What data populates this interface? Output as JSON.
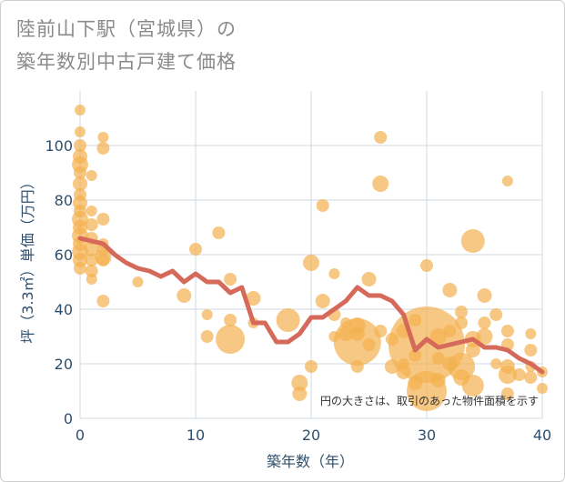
{
  "title": {
    "line1": "陸前山下駅（宮城県）の",
    "line2": "築年数別中古戸建て価格"
  },
  "note": "円の大きさは、取引のあった物件面積を示す",
  "colors": {
    "bubble": "#f4b04f",
    "line": "#d5695a",
    "grid": "#cfd8e3",
    "axis_text": "#2f4f6f",
    "title": "#8a8a8a"
  },
  "chart_data": {
    "type": "scatter",
    "xlabel": "築年数（年）",
    "ylabel": "坪（3.3㎡）単価（万円）",
    "xlim": [
      0,
      40
    ],
    "ylim": [
      0,
      120
    ],
    "xticks": [
      0,
      10,
      20,
      30,
      40
    ],
    "yticks": [
      0,
      20,
      40,
      60,
      80,
      100
    ],
    "grid": true,
    "series": [
      {
        "type": "bubble",
        "points": [
          {
            "x": 0,
            "y": 113,
            "s": 6
          },
          {
            "x": 0,
            "y": 105,
            "s": 6
          },
          {
            "x": 0,
            "y": 100,
            "s": 7
          },
          {
            "x": 0,
            "y": 96,
            "s": 8
          },
          {
            "x": 0,
            "y": 93,
            "s": 9
          },
          {
            "x": 0,
            "y": 90,
            "s": 7
          },
          {
            "x": 0,
            "y": 86,
            "s": 8
          },
          {
            "x": 0,
            "y": 82,
            "s": 7
          },
          {
            "x": 0,
            "y": 79,
            "s": 8
          },
          {
            "x": 0,
            "y": 76,
            "s": 7
          },
          {
            "x": 0,
            "y": 73,
            "s": 9
          },
          {
            "x": 0,
            "y": 70,
            "s": 8
          },
          {
            "x": 0,
            "y": 67,
            "s": 9
          },
          {
            "x": 0,
            "y": 64,
            "s": 8
          },
          {
            "x": 0,
            "y": 61,
            "s": 9
          },
          {
            "x": 0,
            "y": 58,
            "s": 8
          },
          {
            "x": 0,
            "y": 55,
            "s": 7
          },
          {
            "x": 1,
            "y": 89,
            "s": 6
          },
          {
            "x": 1,
            "y": 76,
            "s": 6
          },
          {
            "x": 1,
            "y": 71,
            "s": 7
          },
          {
            "x": 1,
            "y": 66,
            "s": 7
          },
          {
            "x": 1,
            "y": 62,
            "s": 8
          },
          {
            "x": 1,
            "y": 58,
            "s": 7
          },
          {
            "x": 1,
            "y": 54,
            "s": 7
          },
          {
            "x": 1,
            "y": 51,
            "s": 6
          },
          {
            "x": 2,
            "y": 103,
            "s": 6
          },
          {
            "x": 2,
            "y": 99,
            "s": 7
          },
          {
            "x": 2,
            "y": 73,
            "s": 7
          },
          {
            "x": 2,
            "y": 64,
            "s": 6
          },
          {
            "x": 2,
            "y": 62,
            "s": 7
          },
          {
            "x": 2,
            "y": 59,
            "s": 9
          },
          {
            "x": 2,
            "y": 58,
            "s": 7
          },
          {
            "x": 2,
            "y": 43,
            "s": 7
          },
          {
            "x": 5,
            "y": 50,
            "s": 6
          },
          {
            "x": 9,
            "y": 45,
            "s": 8
          },
          {
            "x": 10,
            "y": 62,
            "s": 7
          },
          {
            "x": 11,
            "y": 38,
            "s": 6
          },
          {
            "x": 11,
            "y": 30,
            "s": 7
          },
          {
            "x": 12,
            "y": 68,
            "s": 7
          },
          {
            "x": 13,
            "y": 51,
            "s": 7
          },
          {
            "x": 13,
            "y": 36,
            "s": 7
          },
          {
            "x": 13,
            "y": 29,
            "s": 16
          },
          {
            "x": 15,
            "y": 44,
            "s": 8
          },
          {
            "x": 15,
            "y": 35,
            "s": 6
          },
          {
            "x": 18,
            "y": 36,
            "s": 13
          },
          {
            "x": 19,
            "y": 13,
            "s": 9
          },
          {
            "x": 19,
            "y": 9,
            "s": 8
          },
          {
            "x": 20,
            "y": 57,
            "s": 9
          },
          {
            "x": 20,
            "y": 19,
            "s": 7
          },
          {
            "x": 21,
            "y": 78,
            "s": 7
          },
          {
            "x": 21,
            "y": 43,
            "s": 8
          },
          {
            "x": 22,
            "y": 53,
            "s": 6
          },
          {
            "x": 22,
            "y": 38,
            "s": 7
          },
          {
            "x": 22,
            "y": 30,
            "s": 6
          },
          {
            "x": 23,
            "y": 31,
            "s": 8
          },
          {
            "x": 23,
            "y": 35,
            "s": 6
          },
          {
            "x": 24,
            "y": 34,
            "s": 9
          },
          {
            "x": 24,
            "y": 31,
            "s": 8
          },
          {
            "x": 24,
            "y": 28,
            "s": 26
          },
          {
            "x": 24,
            "y": 19,
            "s": 7
          },
          {
            "x": 25,
            "y": 51,
            "s": 8
          },
          {
            "x": 25,
            "y": 27,
            "s": 7
          },
          {
            "x": 26,
            "y": 103,
            "s": 7
          },
          {
            "x": 26,
            "y": 86,
            "s": 9
          },
          {
            "x": 26,
            "y": 32,
            "s": 7
          },
          {
            "x": 27,
            "y": 29,
            "s": 7
          },
          {
            "x": 27,
            "y": 19,
            "s": 8
          },
          {
            "x": 28,
            "y": 32,
            "s": 8
          },
          {
            "x": 28,
            "y": 20,
            "s": 6
          },
          {
            "x": 28,
            "y": 17,
            "s": 8
          },
          {
            "x": 29,
            "y": 36,
            "s": 7
          },
          {
            "x": 29,
            "y": 23,
            "s": 7
          },
          {
            "x": 29,
            "y": 13,
            "s": 8
          },
          {
            "x": 30,
            "y": 56,
            "s": 7
          },
          {
            "x": 30,
            "y": 27,
            "s": 42
          },
          {
            "x": 30,
            "y": 10,
            "s": 22
          },
          {
            "x": 31,
            "y": 30,
            "s": 9
          },
          {
            "x": 31,
            "y": 22,
            "s": 7
          },
          {
            "x": 31,
            "y": 14,
            "s": 8
          },
          {
            "x": 32,
            "y": 47,
            "s": 8
          },
          {
            "x": 32,
            "y": 32,
            "s": 7
          },
          {
            "x": 32,
            "y": 20,
            "s": 8
          },
          {
            "x": 33,
            "y": 39,
            "s": 7
          },
          {
            "x": 33,
            "y": 35,
            "s": 7
          },
          {
            "x": 33,
            "y": 19,
            "s": 15
          },
          {
            "x": 33,
            "y": 15,
            "s": 9
          },
          {
            "x": 34,
            "y": 65,
            "s": 13
          },
          {
            "x": 34,
            "y": 29,
            "s": 9
          },
          {
            "x": 34,
            "y": 25,
            "s": 8
          },
          {
            "x": 34,
            "y": 12,
            "s": 12
          },
          {
            "x": 35,
            "y": 45,
            "s": 8
          },
          {
            "x": 35,
            "y": 35,
            "s": 7
          },
          {
            "x": 35,
            "y": 30,
            "s": 9
          },
          {
            "x": 36,
            "y": 38,
            "s": 7
          },
          {
            "x": 36,
            "y": 20,
            "s": 6
          },
          {
            "x": 37,
            "y": 87,
            "s": 6
          },
          {
            "x": 37,
            "y": 32,
            "s": 7
          },
          {
            "x": 37,
            "y": 27,
            "s": 7
          },
          {
            "x": 37,
            "y": 19,
            "s": 8
          },
          {
            "x": 37,
            "y": 16,
            "s": 10
          },
          {
            "x": 37,
            "y": 9,
            "s": 7
          },
          {
            "x": 38,
            "y": 16,
            "s": 7
          },
          {
            "x": 39,
            "y": 31,
            "s": 6
          },
          {
            "x": 39,
            "y": 25,
            "s": 7
          },
          {
            "x": 39,
            "y": 19,
            "s": 6
          },
          {
            "x": 39,
            "y": 15,
            "s": 7
          },
          {
            "x": 40,
            "y": 17,
            "s": 6
          },
          {
            "x": 40,
            "y": 11,
            "s": 6
          }
        ]
      },
      {
        "type": "line",
        "x": [
          0,
          1,
          2,
          3,
          4,
          5,
          6,
          7,
          8,
          9,
          10,
          11,
          12,
          13,
          14,
          15,
          16,
          17,
          18,
          19,
          20,
          21,
          22,
          23,
          24,
          25,
          26,
          27,
          28,
          29,
          30,
          31,
          32,
          33,
          34,
          35,
          36,
          37,
          38,
          39,
          40
        ],
        "values": [
          66,
          65,
          64,
          60,
          57,
          55,
          54,
          52,
          54,
          50,
          53,
          50,
          50,
          46,
          48,
          35,
          35,
          28,
          28,
          31,
          37,
          37,
          40,
          43,
          48,
          45,
          45,
          43,
          38,
          25,
          29,
          26,
          27,
          28,
          29,
          26,
          26,
          25,
          22,
          20,
          17
        ]
      }
    ]
  }
}
